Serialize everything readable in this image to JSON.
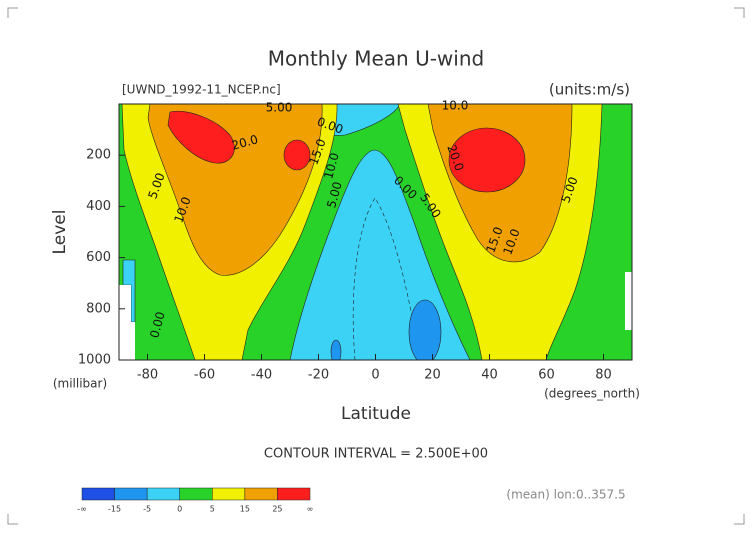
{
  "chart_data": {
    "type": "contour",
    "title": "Monthly Mean U-wind",
    "file_label": "[UWND_1992-11_NCEP.nc]",
    "units_label": "(units:m/s)",
    "x_label": "Latitude",
    "y_label": "Level",
    "x_unit_label": "(degrees_north)",
    "y_unit_label": "(millibar)",
    "xlim": [
      -90,
      90
    ],
    "xticks": [
      -80,
      -60,
      -40,
      -20,
      0,
      20,
      40,
      60,
      80
    ],
    "ylim": [
      1000,
      0
    ],
    "yticks": [
      200,
      400,
      600,
      800,
      1000
    ],
    "contour_labels": [
      "5.00",
      "0.00",
      "10.0",
      "20.0",
      "15.0",
      "10.0",
      "5.00",
      "10.0",
      "5.00",
      "0.00",
      "5.00",
      "20.0",
      "15.0",
      "10.0",
      "5.00",
      "0.00"
    ],
    "contour_interval_label": "CONTOUR INTERVAL = 2.500E+00",
    "colorbar_labels": [
      "-∞",
      "-15",
      "-5",
      "0",
      "5",
      "15",
      "25",
      "∞"
    ],
    "colorbar_colors": [
      "#1e50e6",
      "#1e96f0",
      "#3cd2f5",
      "#28d228",
      "#f0f000",
      "#f0a000",
      "#ff1e1e"
    ],
    "footnote": "(mean) lon:0..357.5"
  }
}
